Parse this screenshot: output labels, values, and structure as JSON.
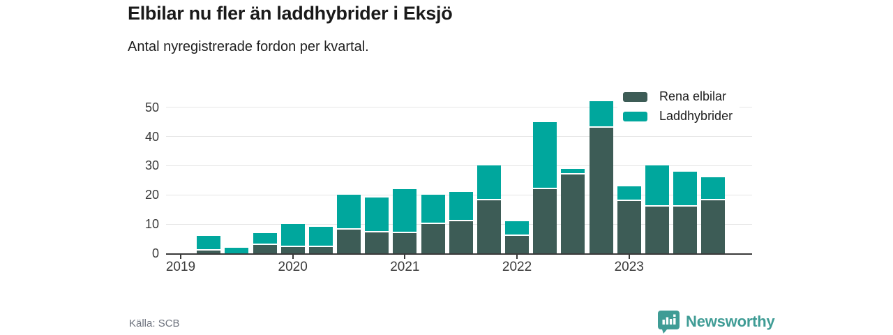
{
  "header": {
    "title": "Elbilar nu fler än laddhybrider i Eksjö",
    "subtitle": "Antal nyregistrerade fordon per kvartal."
  },
  "chart_data": {
    "type": "bar",
    "stacked": true,
    "title": "Elbilar nu fler än laddhybrider i Eksjö",
    "subtitle": "Antal nyregistrerade fordon per kvartal.",
    "categories": [
      "2019 Q1",
      "2019 Q2",
      "2019 Q3",
      "2019 Q4",
      "2020 Q1",
      "2020 Q2",
      "2020 Q3",
      "2020 Q4",
      "2021 Q1",
      "2021 Q2",
      "2021 Q3",
      "2021 Q4",
      "2022 Q1",
      "2022 Q2",
      "2022 Q3",
      "2022 Q4",
      "2023 Q1",
      "2023 Q2",
      "2023 Q3",
      "2023 Q4"
    ],
    "series": [
      {
        "name": "Rena elbilar",
        "color": "#3D5C56",
        "values": [
          0,
          1,
          0,
          3,
          2,
          2,
          8,
          7,
          7,
          10,
          11,
          18,
          6,
          22,
          27,
          43,
          18,
          16,
          16,
          18
        ]
      },
      {
        "name": "Laddhybrider",
        "color": "#00A79D",
        "values": [
          0,
          5,
          2,
          4,
          8,
          7,
          12,
          12,
          15,
          10,
          10,
          12,
          5,
          23,
          2,
          9,
          5,
          14,
          12,
          8
        ]
      }
    ],
    "xlabel": "",
    "ylabel": "",
    "ylim": [
      0,
      55
    ],
    "yticks": [
      0,
      10,
      20,
      30,
      40,
      50
    ],
    "xticks": [
      "2019",
      "2020",
      "2021",
      "2022",
      "2023"
    ],
    "grid": true,
    "legend_position": "top-right"
  },
  "footer": {
    "source": "Källa: SCB",
    "brand": "Newsworthy",
    "brand_color": "#3F9C95"
  }
}
